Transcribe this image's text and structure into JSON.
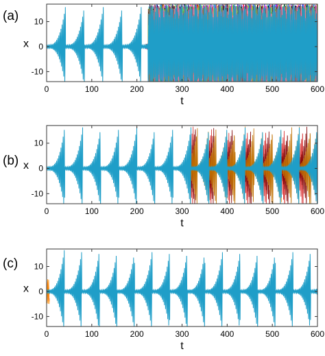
{
  "chart_data": [
    {
      "type": "line",
      "panel_label": "(a)",
      "xlabel": "t",
      "ylabel": "x",
      "xlim": [
        0,
        600
      ],
      "ylim": [
        -14,
        17
      ],
      "xticks": [
        0,
        100,
        200,
        300,
        400,
        500,
        600
      ],
      "xtick_labels": [
        "0",
        "100",
        "200",
        "300",
        "400",
        "500",
        "600"
      ],
      "yticks": [
        -10,
        0,
        10
      ],
      "ytick_labels": [
        "-10",
        "0",
        "10"
      ],
      "signal": {
        "period": 42,
        "carrier_period": 2.4,
        "peak": 16.5,
        "floor": 0.6
      },
      "divergence": {
        "start": 225,
        "type": "full",
        "ensemble_colors": [
          "#ff0000",
          "#00b050",
          "#0000ff",
          "#ff8c00",
          "#a020f0",
          "#ff00ff",
          "#00c8c8",
          "#8b4513",
          "#000000",
          "#9acd32",
          "#ff69b4",
          "#7f7f7f"
        ]
      },
      "series": [
        {
          "values_description": "",
          "color": "#1f9ec8"
        }
      ]
    },
    {
      "type": "line",
      "panel_label": "(b)",
      "xlabel": "t",
      "ylabel": "x",
      "xlim": [
        0,
        600
      ],
      "ylim": [
        -14,
        17
      ],
      "xticks": [
        0,
        100,
        200,
        300,
        400,
        500,
        600
      ],
      "xtick_labels": [
        "0",
        "100",
        "200",
        "300",
        "400",
        "500",
        "600"
      ],
      "yticks": [
        -10,
        0,
        10
      ],
      "ytick_labels": [
        "-10",
        "0",
        "10"
      ],
      "signal": {
        "period": 40,
        "carrier_period": 2.4,
        "peak": 16.5,
        "floor": 0.6
      },
      "divergence": {
        "start": 322,
        "type": "partial",
        "ensemble_colors": [
          "#ff8c00",
          "#d62728",
          "#800000",
          "#c07000"
        ]
      },
      "series": [
        {
          "color": "#1f9ec8"
        }
      ]
    },
    {
      "type": "line",
      "panel_label": "(c)",
      "xlabel": "t",
      "ylabel": "x",
      "xlim": [
        0,
        600
      ],
      "ylim": [
        -14,
        17
      ],
      "xticks": [
        0,
        100,
        200,
        300,
        400,
        500,
        600
      ],
      "xtick_labels": [
        "0",
        "100",
        "200",
        "300",
        "400",
        "500",
        "600"
      ],
      "yticks": [
        -10,
        0,
        10
      ],
      "ytick_labels": [
        "-10",
        "0",
        "10"
      ],
      "signal": {
        "period": 39,
        "carrier_period": 2.4,
        "peak": 16.5,
        "floor": 0.6
      },
      "divergence": {
        "start": null,
        "type": "none",
        "ensemble_colors": [
          "#d62728",
          "#ff8c00"
        ]
      },
      "series": [
        {
          "color": "#1f9ec8"
        }
      ]
    }
  ]
}
